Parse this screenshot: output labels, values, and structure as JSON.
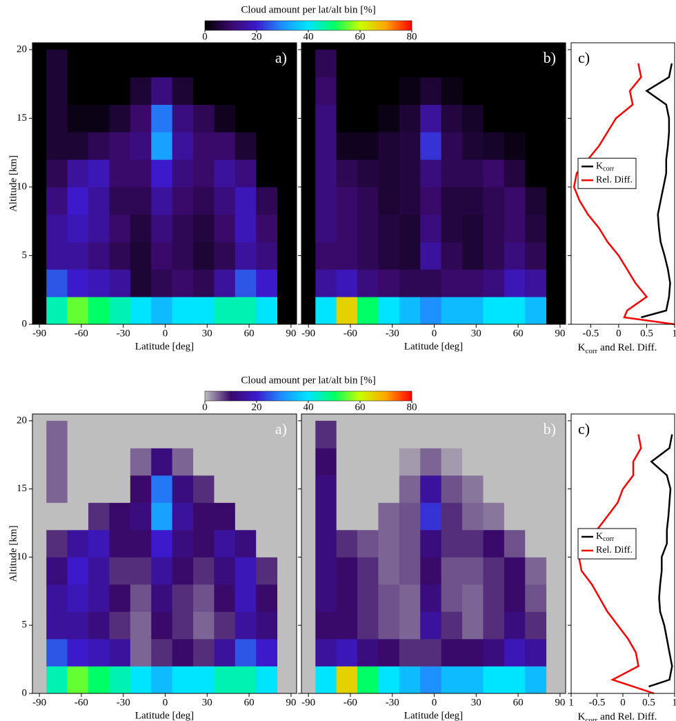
{
  "chart_data": [
    {
      "type": "colorbar",
      "title": "Cloud amount per lat/alt bin [%]",
      "lim": [
        0,
        80
      ],
      "ticks": [
        0,
        20,
        40,
        60,
        80
      ],
      "colors": [
        "#000000",
        "#3a0a6a",
        "#3c1acc",
        "#1e90ff",
        "#00e5ff",
        "#00ff66",
        "#c8ff00",
        "#ffa500",
        "#ff0000"
      ]
    },
    {
      "type": "heatmap",
      "label": "a)",
      "xlabel": "Latitude [deg]",
      "ylabel": "Altitude [km]",
      "background": "#000000",
      "xlim": [
        -95,
        94
      ],
      "ylim": [
        0,
        20.5
      ],
      "xticks": [
        -90,
        -60,
        -30,
        0,
        30,
        60,
        90
      ],
      "yticks": [
        0,
        5,
        10,
        15,
        20
      ],
      "show_ytick_labels": true,
      "x": [
        -85,
        -70,
        -55,
        -40,
        -25,
        -10,
        5,
        20,
        35,
        50,
        65,
        80
      ],
      "y": [
        0,
        2,
        4,
        6,
        8,
        10,
        12,
        14,
        16,
        18,
        20
      ],
      "zlim": [
        0,
        80
      ],
      "colors": [
        "#000000",
        "#3a0a6a",
        "#3c1acc",
        "#1e90ff",
        "#00e5ff",
        "#00ff66",
        "#c8ff00",
        "#ffa500",
        "#ff0000"
      ],
      "z": [
        [
          45,
          55,
          50,
          45,
          40,
          35,
          40,
          40,
          45,
          45,
          40
        ],
        [
          25,
          20,
          18,
          15,
          5,
          8,
          10,
          8,
          15,
          25,
          20
        ],
        [
          15,
          15,
          12,
          8,
          5,
          10,
          8,
          5,
          8,
          15,
          12
        ],
        [
          15,
          18,
          15,
          10,
          6,
          12,
          8,
          6,
          10,
          18,
          10
        ],
        [
          12,
          20,
          15,
          8,
          8,
          15,
          10,
          8,
          12,
          18,
          8
        ],
        [
          8,
          15,
          18,
          10,
          10,
          20,
          12,
          10,
          15,
          12,
          0
        ],
        [
          5,
          5,
          8,
          10,
          12,
          32,
          15,
          10,
          10,
          5,
          0
        ],
        [
          5,
          2,
          2,
          5,
          10,
          28,
          12,
          8,
          3,
          0,
          0
        ],
        [
          5,
          0,
          0,
          0,
          5,
          12,
          5,
          0,
          0,
          0,
          0
        ],
        [
          5,
          0,
          0,
          0,
          0,
          0,
          0,
          0,
          0,
          0,
          0
        ]
      ]
    },
    {
      "type": "heatmap",
      "label": "b)",
      "xlabel": "Latitude [deg]",
      "background": "#000000",
      "xlim": [
        -95,
        94
      ],
      "ylim": [
        0,
        20.5
      ],
      "xticks": [
        -90,
        -60,
        -30,
        0,
        30,
        60,
        90
      ],
      "yticks": [
        0,
        5,
        10,
        15,
        20
      ],
      "show_ytick_labels": false,
      "x": [
        -85,
        -70,
        -55,
        -40,
        -25,
        -10,
        5,
        20,
        35,
        50,
        65,
        80
      ],
      "y": [
        0,
        2,
        4,
        6,
        8,
        10,
        12,
        14,
        16,
        18,
        20
      ],
      "zlim": [
        0,
        80
      ],
      "colors": [
        "#000000",
        "#3a0a6a",
        "#3c1acc",
        "#1e90ff",
        "#00e5ff",
        "#00ff66",
        "#c8ff00",
        "#ffa500",
        "#ff0000"
      ],
      "z": [
        [
          40,
          65,
          50,
          40,
          35,
          30,
          35,
          35,
          40,
          40,
          35
        ],
        [
          15,
          18,
          12,
          10,
          8,
          8,
          10,
          10,
          12,
          18,
          15
        ],
        [
          10,
          10,
          8,
          6,
          5,
          15,
          8,
          5,
          8,
          12,
          8
        ],
        [
          12,
          10,
          8,
          6,
          5,
          12,
          6,
          5,
          8,
          10,
          6
        ],
        [
          12,
          10,
          8,
          5,
          6,
          10,
          6,
          6,
          8,
          10,
          5
        ],
        [
          12,
          8,
          6,
          5,
          6,
          12,
          8,
          8,
          10,
          6,
          0
        ],
        [
          12,
          3,
          3,
          5,
          6,
          22,
          8,
          5,
          4,
          2,
          0
        ],
        [
          12,
          0,
          0,
          2,
          5,
          15,
          6,
          4,
          0,
          0,
          0
        ],
        [
          10,
          0,
          0,
          0,
          2,
          5,
          2,
          0,
          0,
          0,
          0
        ],
        [
          8,
          0,
          0,
          0,
          0,
          0,
          0,
          0,
          0,
          0,
          0
        ]
      ]
    },
    {
      "type": "profile",
      "label": "c)",
      "xlabel": [
        "K",
        "corr",
        "and  Rel. Diff."
      ],
      "legend": "center-left",
      "xlim": [
        -0.85,
        1
      ],
      "ylim": [
        0,
        20.5
      ],
      "xticks": [
        -0.5,
        0,
        0.5,
        1
      ],
      "yticks": [
        0,
        5,
        10,
        15,
        20
      ],
      "y": [
        0,
        0.5,
        1,
        2,
        3,
        4,
        5,
        6,
        7,
        8,
        9,
        10,
        11,
        12,
        13,
        14,
        15,
        16,
        17,
        18,
        19
      ],
      "series": [
        {
          "name": "K",
          "subscript": "corr",
          "color": "#000000",
          "values": [
            null,
            0.4,
            0.85,
            0.9,
            0.92,
            0.88,
            0.82,
            0.75,
            0.72,
            0.7,
            0.75,
            0.8,
            0.85,
            0.85,
            0.88,
            0.9,
            0.9,
            0.85,
            0.5,
            0.9,
            0.95
          ]
        },
        {
          "name": "Rel. Diff.",
          "color": "#ff0000",
          "values": [
            1.0,
            0.1,
            0.15,
            0.5,
            0.3,
            0.15,
            0.0,
            -0.2,
            -0.35,
            -0.55,
            -0.7,
            -0.8,
            -0.75,
            -0.55,
            -0.35,
            -0.2,
            -0.05,
            0.25,
            0.2,
            0.4,
            0.35
          ]
        }
      ]
    },
    {
      "type": "colorbar",
      "title": "Cloud amount per lat/alt bin [%]",
      "lim": [
        0,
        80
      ],
      "ticks": [
        0,
        20,
        40,
        60,
        80
      ],
      "colors": [
        "#bebebe",
        "#3a0a6a",
        "#3c1acc",
        "#1e90ff",
        "#00e5ff",
        "#00ff66",
        "#c8ff00",
        "#ffa500",
        "#ff0000"
      ]
    },
    {
      "type": "heatmap",
      "label": "a)",
      "xlabel": "Latitude [deg]",
      "ylabel": "Altitude [km]",
      "background": "#bebebe",
      "xlim": [
        -95,
        94
      ],
      "ylim": [
        0,
        20.5
      ],
      "xticks": [
        -90,
        -60,
        -30,
        0,
        30,
        60,
        90
      ],
      "yticks": [
        0,
        5,
        10,
        15,
        20
      ],
      "show_ytick_labels": true,
      "x": [
        -85,
        -70,
        -55,
        -40,
        -25,
        -10,
        5,
        20,
        35,
        50,
        65,
        80
      ],
      "y": [
        0,
        2,
        4,
        6,
        8,
        10,
        12,
        14,
        16,
        18,
        20
      ],
      "zlim": [
        0,
        80
      ],
      "colors": [
        "#bebebe",
        "#3a0a6a",
        "#3c1acc",
        "#1e90ff",
        "#00e5ff",
        "#00ff66",
        "#c8ff00",
        "#ffa500",
        "#ff0000"
      ],
      "z": [
        [
          45,
          55,
          50,
          45,
          40,
          35,
          40,
          40,
          45,
          45,
          40
        ],
        [
          25,
          20,
          18,
          15,
          5,
          8,
          10,
          8,
          15,
          25,
          20
        ],
        [
          15,
          15,
          12,
          8,
          5,
          10,
          8,
          5,
          8,
          15,
          12
        ],
        [
          15,
          18,
          15,
          10,
          6,
          12,
          8,
          6,
          10,
          18,
          10
        ],
        [
          12,
          20,
          15,
          8,
          8,
          15,
          10,
          8,
          12,
          18,
          8
        ],
        [
          8,
          15,
          18,
          10,
          10,
          20,
          12,
          10,
          15,
          12,
          0
        ],
        [
          0,
          0,
          8,
          10,
          12,
          32,
          15,
          10,
          10,
          0,
          0
        ],
        [
          5,
          0,
          0,
          0,
          10,
          28,
          12,
          8,
          0,
          0,
          0
        ],
        [
          5,
          0,
          0,
          0,
          5,
          12,
          5,
          0,
          0,
          0,
          0
        ],
        [
          5,
          0,
          0,
          0,
          0,
          0,
          0,
          0,
          0,
          0,
          0
        ]
      ]
    },
    {
      "type": "heatmap",
      "label": "b)",
      "xlabel": "Latitude [deg]",
      "background": "#bebebe",
      "xlim": [
        -95,
        94
      ],
      "ylim": [
        0,
        20.5
      ],
      "xticks": [
        -90,
        -60,
        -30,
        0,
        30,
        60,
        90
      ],
      "yticks": [
        0,
        5,
        10,
        15,
        20
      ],
      "show_ytick_labels": false,
      "x": [
        -85,
        -70,
        -55,
        -40,
        -25,
        -10,
        5,
        20,
        35,
        50,
        65,
        80
      ],
      "y": [
        0,
        2,
        4,
        6,
        8,
        10,
        12,
        14,
        16,
        18,
        20
      ],
      "zlim": [
        0,
        80
      ],
      "colors": [
        "#bebebe",
        "#3a0a6a",
        "#3c1acc",
        "#1e90ff",
        "#00e5ff",
        "#00ff66",
        "#c8ff00",
        "#ffa500",
        "#ff0000"
      ],
      "z": [
        [
          40,
          65,
          50,
          40,
          35,
          30,
          35,
          35,
          40,
          40,
          35
        ],
        [
          15,
          18,
          12,
          10,
          8,
          8,
          10,
          10,
          12,
          18,
          15
        ],
        [
          10,
          10,
          8,
          6,
          5,
          15,
          8,
          5,
          8,
          12,
          8
        ],
        [
          12,
          10,
          8,
          6,
          5,
          12,
          6,
          5,
          8,
          10,
          6
        ],
        [
          12,
          10,
          8,
          5,
          6,
          10,
          6,
          6,
          8,
          10,
          5
        ],
        [
          12,
          8,
          6,
          5,
          6,
          12,
          8,
          8,
          10,
          6,
          0
        ],
        [
          12,
          0,
          0,
          5,
          6,
          22,
          8,
          5,
          4,
          0,
          0
        ],
        [
          12,
          0,
          0,
          0,
          5,
          15,
          6,
          4,
          0,
          0,
          0
        ],
        [
          10,
          0,
          0,
          0,
          2,
          5,
          2,
          0,
          0,
          0,
          0
        ],
        [
          8,
          0,
          0,
          0,
          0,
          0,
          0,
          0,
          0,
          0,
          0
        ]
      ]
    },
    {
      "type": "profile",
      "label": "c)",
      "xlabel": [
        "K",
        "corr",
        "and  Rel. Diff."
      ],
      "legend": "center-left",
      "xlim": [
        -1,
        1
      ],
      "ylim": [
        0,
        20.5
      ],
      "xticks": [
        {
          "value": -1,
          "label": "1"
        },
        -0.5,
        0,
        0.5,
        1
      ],
      "yticks": [
        0,
        5,
        10,
        15,
        20
      ],
      "y": [
        0,
        0.5,
        1,
        2,
        3,
        4,
        5,
        6,
        7,
        8,
        9,
        10,
        11,
        12,
        13,
        14,
        15,
        16,
        17,
        18,
        19
      ],
      "series": [
        {
          "name": "K",
          "subscript": "corr",
          "color": "#000000",
          "values": [
            null,
            0.5,
            0.9,
            0.95,
            0.9,
            0.85,
            0.8,
            0.72,
            0.7,
            0.72,
            0.75,
            0.75,
            0.85,
            0.85,
            0.88,
            0.9,
            0.92,
            0.85,
            0.55,
            0.9,
            0.95
          ]
        },
        {
          "name": "Rel. Diff.",
          "color": "#ff0000",
          "values": [
            0.6,
            0.2,
            -0.2,
            0.3,
            0.25,
            0.1,
            -0.1,
            -0.3,
            -0.45,
            -0.6,
            -0.8,
            -0.85,
            -0.75,
            -0.5,
            -0.3,
            -0.1,
            0.0,
            0.2,
            0.2,
            0.35,
            0.3
          ]
        }
      ]
    }
  ]
}
